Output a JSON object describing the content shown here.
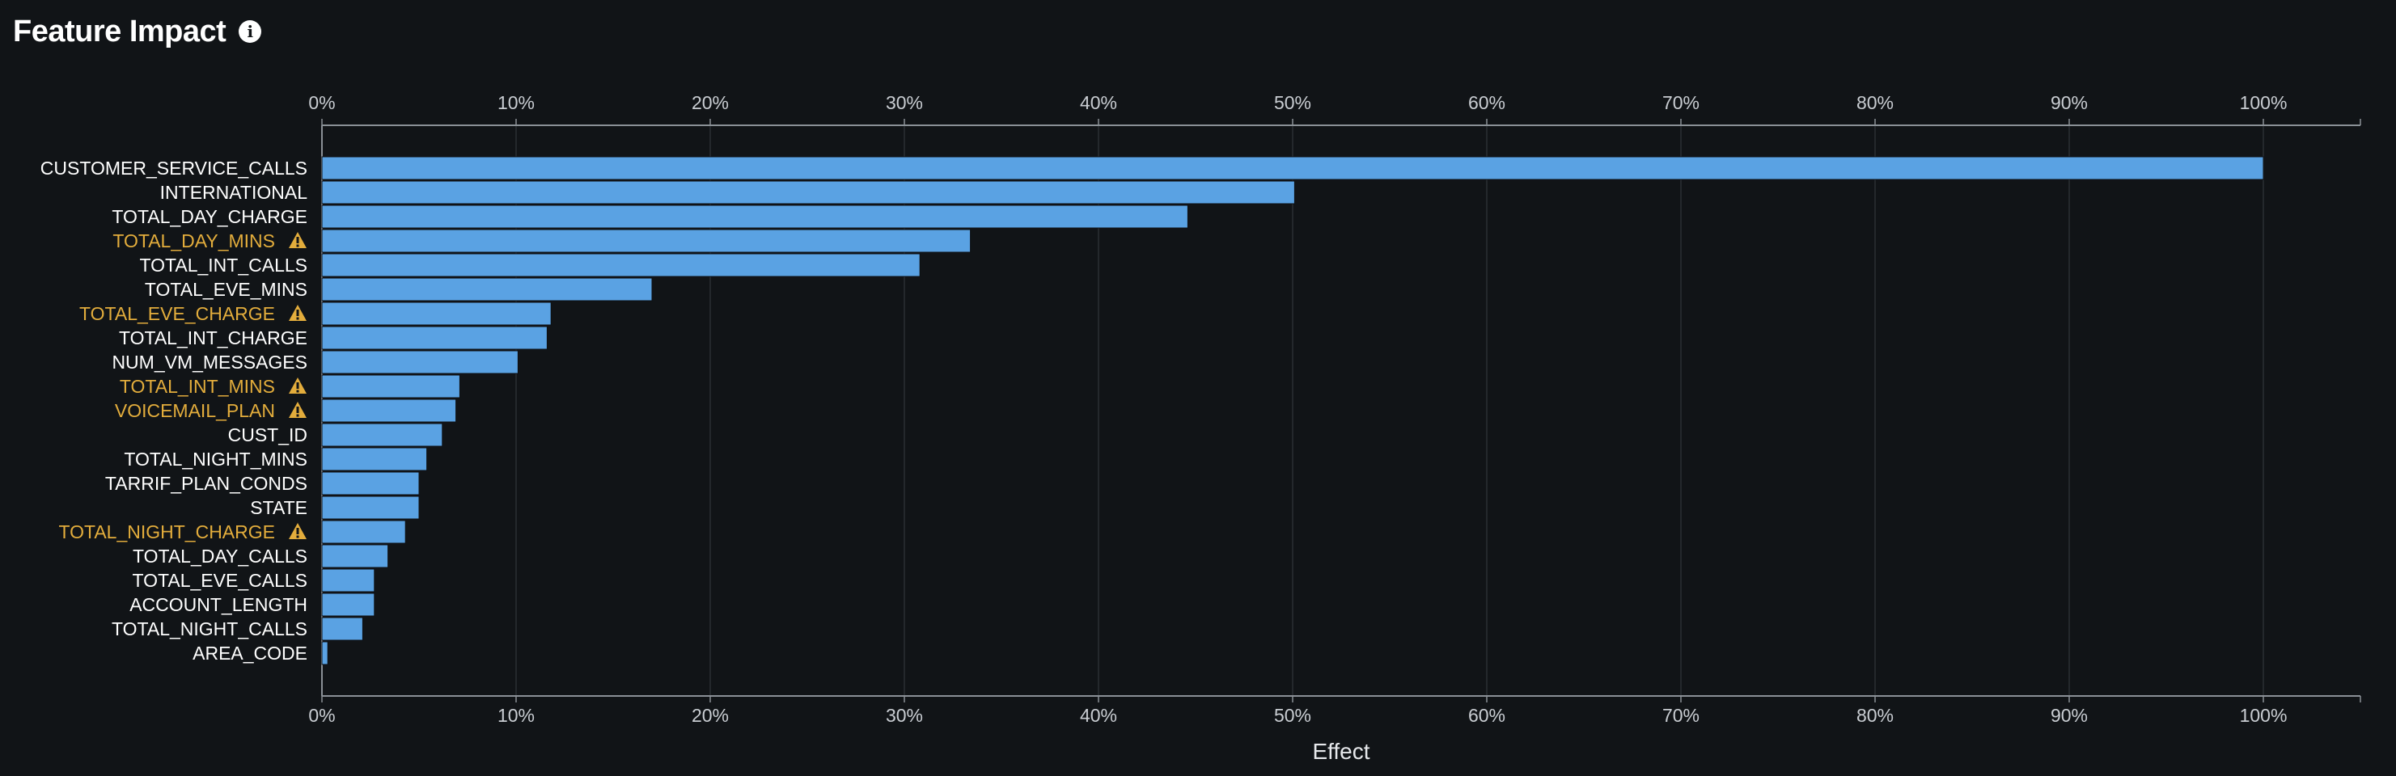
{
  "header": {
    "title": "Feature Impact",
    "info_icon": "info-icon"
  },
  "colors": {
    "background": "#111417",
    "bar": "#5aa2e3",
    "bar_outline": "#0e1114",
    "warning": "#e3ad3c",
    "gridline": "#2a2e33",
    "axis": "#8a9096"
  },
  "chart_data": {
    "type": "bar",
    "orientation": "horizontal",
    "xlabel": "Effect",
    "ylabel": "",
    "xlim": [
      0,
      105
    ],
    "x_ticks": [
      "0%",
      "10%",
      "20%",
      "30%",
      "40%",
      "50%",
      "60%",
      "70%",
      "80%",
      "90%",
      "100%"
    ],
    "x_axis_position": "top and bottom",
    "grid": "vertical",
    "categories": [
      "CUSTOMER_SERVICE_CALLS",
      "INTERNATIONAL",
      "TOTAL_DAY_CHARGE",
      "TOTAL_DAY_MINS",
      "TOTAL_INT_CALLS",
      "TOTAL_EVE_MINS",
      "TOTAL_EVE_CHARGE",
      "TOTAL_INT_CHARGE",
      "NUM_VM_MESSAGES",
      "TOTAL_INT_MINS",
      "VOICEMAIL_PLAN",
      "CUST_ID",
      "TOTAL_NIGHT_MINS",
      "TARRIF_PLAN_CONDS",
      "STATE",
      "TOTAL_NIGHT_CHARGE",
      "TOTAL_DAY_CALLS",
      "TOTAL_EVE_CALLS",
      "ACCOUNT_LENGTH",
      "TOTAL_NIGHT_CALLS",
      "AREA_CODE"
    ],
    "values": [
      100,
      50.1,
      44.6,
      33.4,
      30.8,
      17.0,
      11.8,
      11.6,
      10.1,
      7.1,
      6.9,
      6.2,
      5.4,
      5.0,
      5.0,
      4.3,
      3.4,
      2.7,
      2.7,
      2.1,
      0.3
    ],
    "warnings": [
      false,
      false,
      false,
      true,
      false,
      false,
      true,
      false,
      false,
      true,
      true,
      false,
      false,
      false,
      false,
      true,
      false,
      false,
      false,
      false,
      false
    ],
    "warning_icon": "warning-triangle-icon"
  }
}
